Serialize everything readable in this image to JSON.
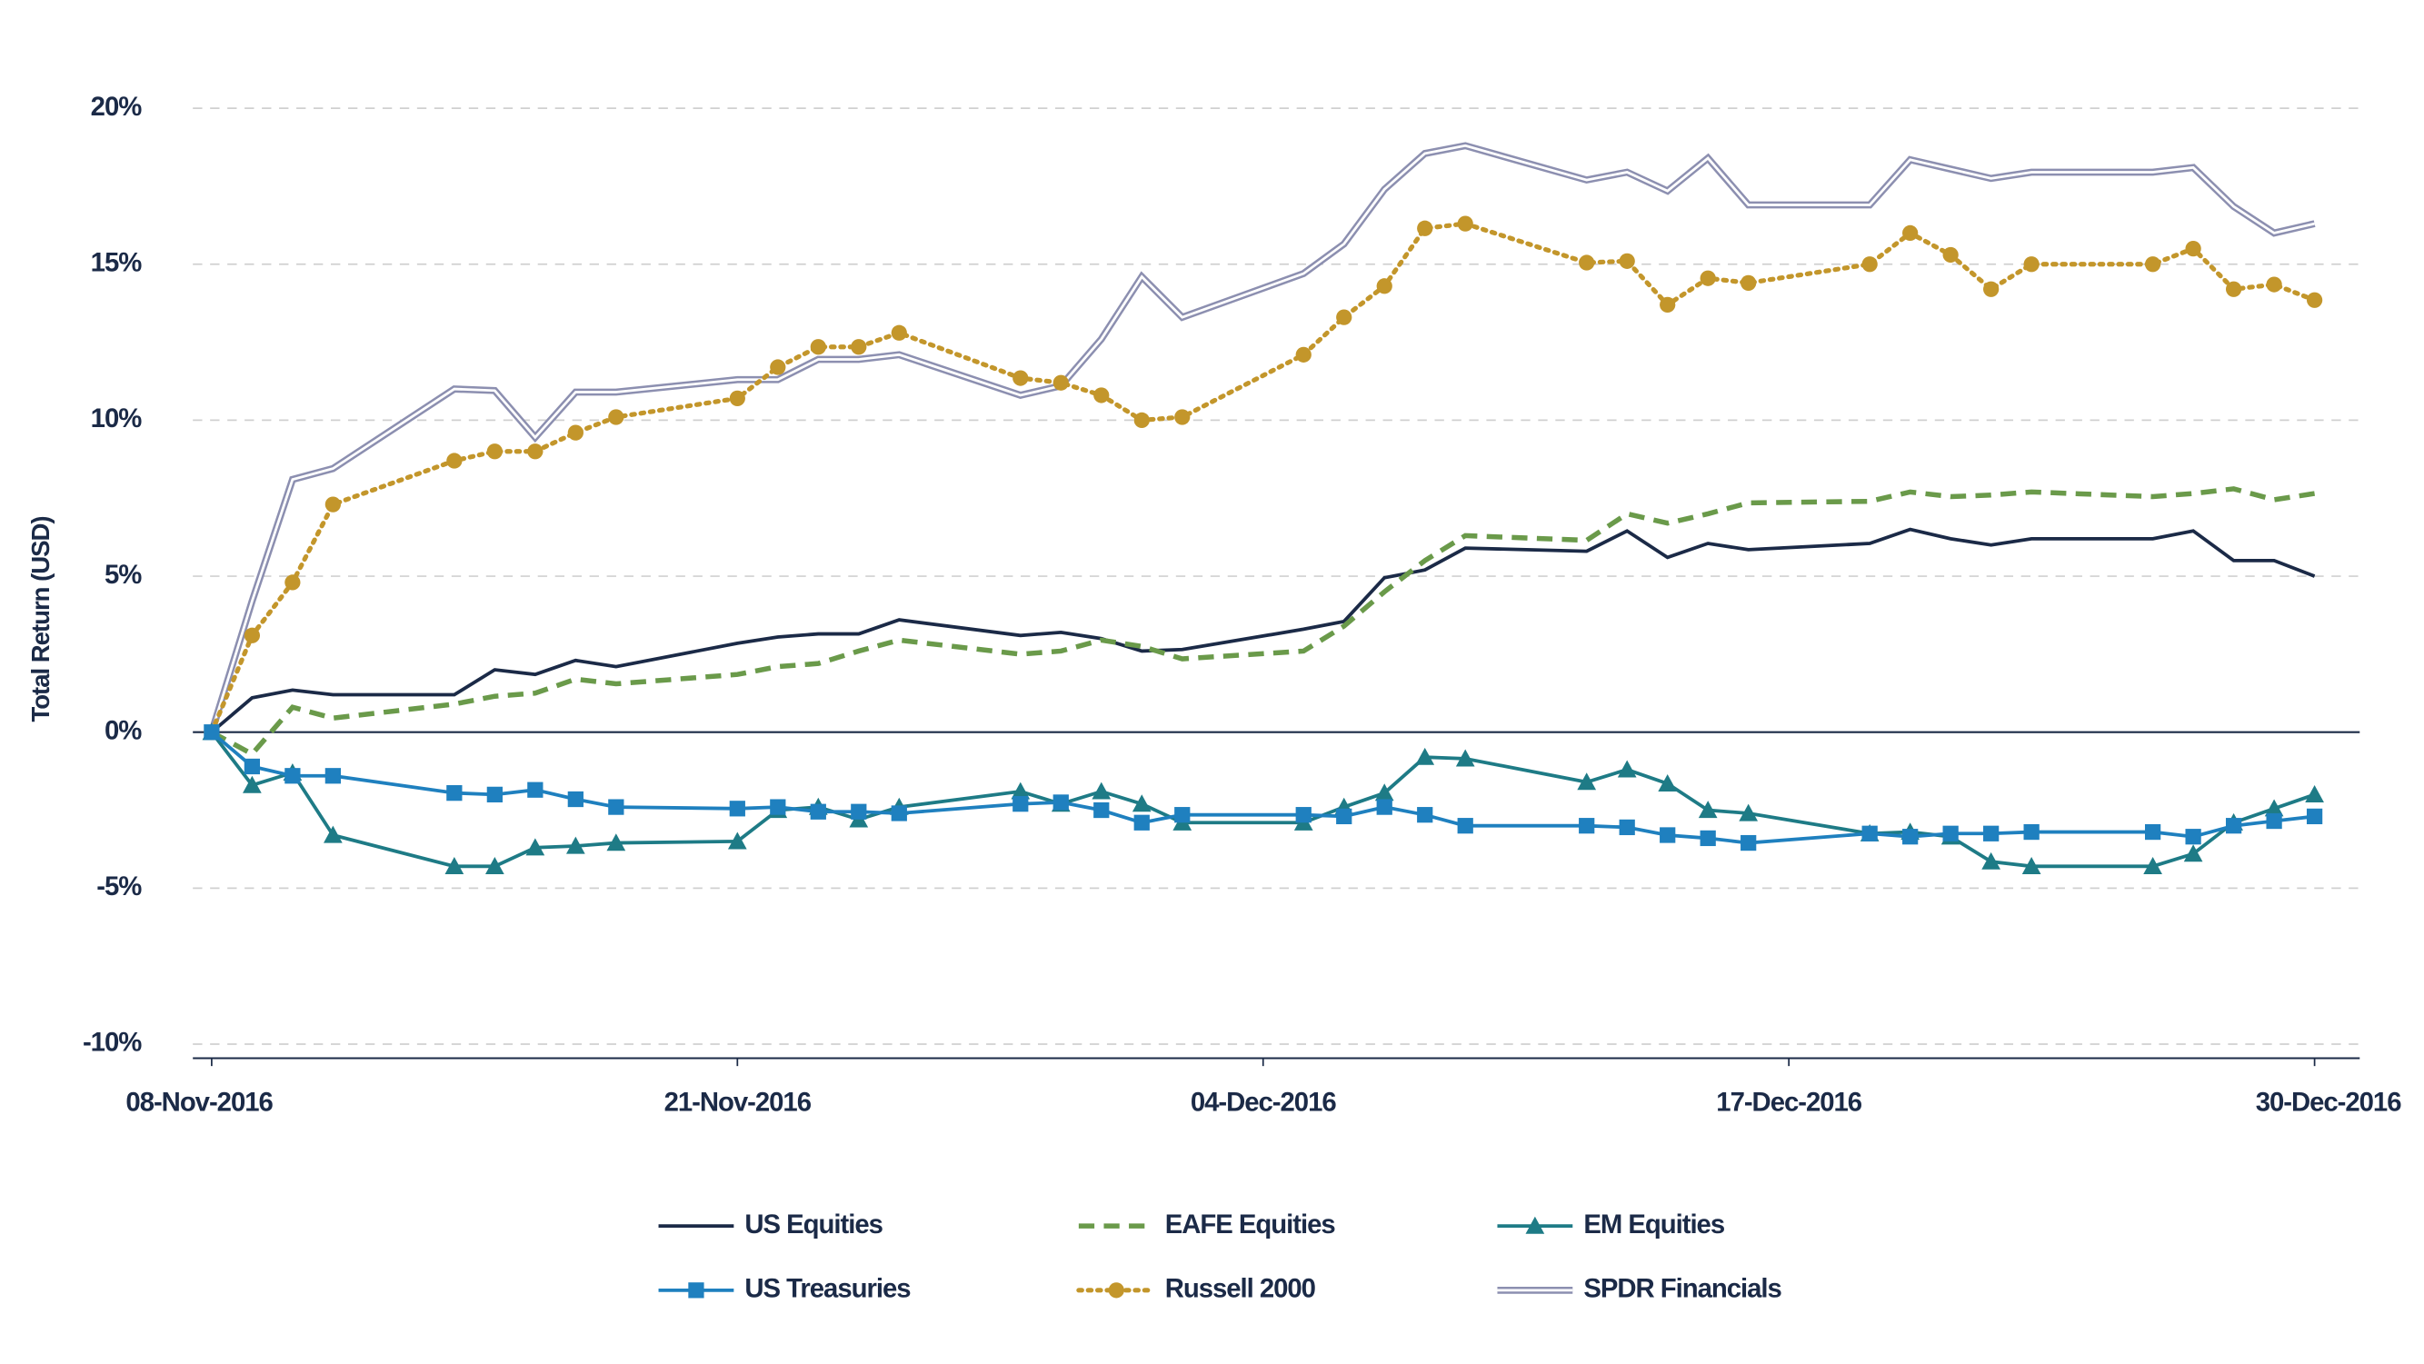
{
  "chart_data": {
    "type": "line",
    "y_label": "Total Return (USD)",
    "x": [
      "2016-11-08",
      "2016-11-09",
      "2016-11-10",
      "2016-11-11",
      "2016-11-14",
      "2016-11-15",
      "2016-11-16",
      "2016-11-17",
      "2016-11-18",
      "2016-11-21",
      "2016-11-22",
      "2016-11-23",
      "2016-11-24",
      "2016-11-25",
      "2016-11-28",
      "2016-11-29",
      "2016-11-30",
      "2016-12-01",
      "2016-12-02",
      "2016-12-05",
      "2016-12-06",
      "2016-12-07",
      "2016-12-08",
      "2016-12-09",
      "2016-12-12",
      "2016-12-13",
      "2016-12-14",
      "2016-12-15",
      "2016-12-16",
      "2016-12-19",
      "2016-12-20",
      "2016-12-21",
      "2016-12-22",
      "2016-12-23",
      "2016-12-26",
      "2016-12-27",
      "2016-12-28",
      "2016-12-29",
      "2016-12-30"
    ],
    "xlim": [
      "2016-11-08",
      "2016-12-31"
    ],
    "xticks": [
      {
        "value": "2016-11-08",
        "label": "08-Nov-2016"
      },
      {
        "value": "2016-11-21",
        "label": "21-Nov-2016"
      },
      {
        "value": "2016-12-04",
        "label": "04-Dec-2016"
      },
      {
        "value": "2016-12-17",
        "label": "17-Dec-2016"
      },
      {
        "value": "2016-12-30",
        "label": "30-Dec-2016"
      }
    ],
    "ylim": [
      -10,
      20
    ],
    "yticks": [
      {
        "value": -10,
        "label": "-10%"
      },
      {
        "value": -5,
        "label": "-5%"
      },
      {
        "value": 0,
        "label": "0%"
      },
      {
        "value": 5,
        "label": "5%"
      },
      {
        "value": 10,
        "label": "10%"
      },
      {
        "value": 15,
        "label": "15%"
      },
      {
        "value": 20,
        "label": "20%"
      }
    ],
    "grid": true,
    "legend": "bottom",
    "series": [
      {
        "name": "US Equities",
        "color": "#1b2a47",
        "style": "solid",
        "marker": "none",
        "values": [
          0,
          1.1,
          1.35,
          1.2,
          1.2,
          2.0,
          1.85,
          2.3,
          2.1,
          2.85,
          3.05,
          3.15,
          3.15,
          3.6,
          3.1,
          3.2,
          3.0,
          2.6,
          2.65,
          3.3,
          3.55,
          4.95,
          5.2,
          5.9,
          5.8,
          6.45,
          5.6,
          6.05,
          5.85,
          6.05,
          6.5,
          6.2,
          6.0,
          6.2,
          6.2,
          6.45,
          5.5,
          5.5,
          5.0
        ]
      },
      {
        "name": "EAFE Equities",
        "color": "#6a9a4a",
        "style": "dashed",
        "marker": "none",
        "values": [
          0,
          -0.7,
          0.8,
          0.45,
          0.9,
          1.15,
          1.25,
          1.7,
          1.55,
          1.85,
          2.1,
          2.2,
          2.6,
          2.95,
          2.5,
          2.6,
          2.95,
          2.75,
          2.35,
          2.6,
          3.4,
          4.5,
          5.5,
          6.3,
          6.15,
          7.0,
          6.7,
          7.0,
          7.35,
          7.4,
          7.7,
          7.55,
          7.6,
          7.7,
          7.55,
          7.65,
          7.8,
          7.45,
          7.65
        ]
      },
      {
        "name": "EM Equities",
        "color": "#1e7b86",
        "style": "solid",
        "marker": "triangle",
        "values": [
          0,
          -1.7,
          -1.3,
          -3.3,
          -4.3,
          -4.3,
          -3.7,
          -3.65,
          -3.55,
          -3.5,
          -2.5,
          -2.4,
          -2.8,
          -2.4,
          -1.9,
          -2.3,
          -1.9,
          -2.3,
          -2.9,
          -2.9,
          -2.4,
          -1.95,
          -0.8,
          -0.85,
          -1.6,
          -1.2,
          -1.65,
          -2.5,
          -2.6,
          -3.25,
          -3.2,
          -3.35,
          -4.15,
          -4.3,
          -4.3,
          -3.9,
          -2.9,
          -2.45,
          -2.0
        ]
      },
      {
        "name": "US Treasuries",
        "color": "#1f80bf",
        "style": "solid",
        "marker": "square",
        "values": [
          0,
          -1.1,
          -1.4,
          -1.4,
          -1.95,
          -2.0,
          -1.85,
          -2.15,
          -2.4,
          -2.45,
          -2.4,
          -2.55,
          -2.55,
          -2.6,
          -2.3,
          -2.25,
          -2.5,
          -2.9,
          -2.65,
          -2.65,
          -2.7,
          -2.4,
          -2.65,
          -3.0,
          -3.0,
          -3.05,
          -3.3,
          -3.4,
          -3.55,
          -3.25,
          -3.35,
          -3.25,
          -3.25,
          -3.2,
          -3.2,
          -3.35,
          -3.0,
          -2.85,
          -2.7
        ]
      },
      {
        "name": "Russell 2000",
        "color": "#c3962b",
        "style": "dotted",
        "marker": "circle",
        "values": [
          0,
          3.1,
          4.8,
          7.3,
          8.7,
          9.0,
          9.0,
          9.6,
          10.1,
          10.7,
          11.7,
          12.35,
          12.35,
          12.8,
          11.35,
          11.2,
          10.8,
          10.0,
          10.1,
          12.1,
          13.3,
          14.3,
          16.15,
          16.3,
          15.05,
          15.1,
          13.7,
          14.55,
          14.4,
          15.0,
          16.0,
          15.3,
          14.2,
          15.0,
          15.0,
          15.5,
          14.2,
          14.35,
          13.85
        ]
      },
      {
        "name": "SPDR Financials",
        "color": "#8c8fb0",
        "style": "double",
        "marker": "none",
        "values": [
          0,
          4.2,
          8.1,
          8.45,
          11.0,
          10.95,
          9.45,
          10.9,
          10.9,
          11.3,
          11.3,
          11.95,
          11.95,
          12.1,
          10.8,
          11.1,
          12.6,
          14.6,
          13.3,
          14.7,
          15.65,
          17.4,
          18.55,
          18.8,
          17.7,
          17.95,
          17.35,
          18.4,
          16.9,
          16.9,
          18.35,
          18.05,
          17.75,
          17.95,
          17.95,
          18.1,
          16.85,
          16.0,
          16.3
        ]
      }
    ]
  }
}
